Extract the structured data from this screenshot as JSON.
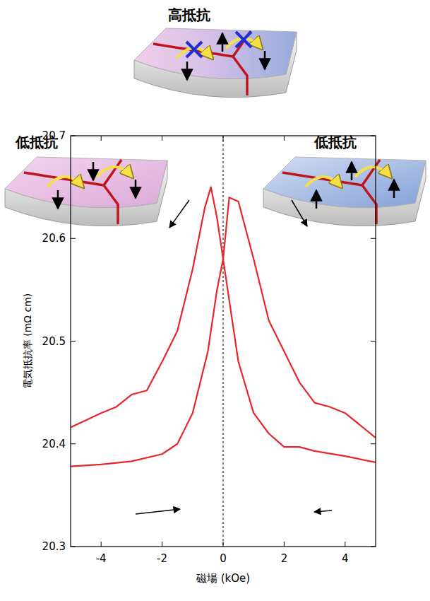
{
  "diagram": {
    "panels": [
      {
        "label": "高抵抗"
      },
      {
        "label": "低抵抗"
      },
      {
        "label": "低抵抗"
      }
    ]
  },
  "chart_data": {
    "type": "line",
    "x_label": "磁場 (kOe)",
    "y_label": "電気抵抗率 (mΩ cm)",
    "xlim": [
      -5,
      5
    ],
    "xticks": [
      -4,
      -2,
      0,
      2,
      4
    ],
    "ylim": [
      20.3,
      20.7
    ],
    "yticks": [
      20.3,
      20.4,
      20.5,
      20.6,
      20.7
    ],
    "grid": false,
    "reference_lines": [
      {
        "x": 0,
        "line_style": "dashed"
      }
    ],
    "series": [
      {
        "color": "#e8262a",
        "x": [
          5,
          4,
          3,
          2.5,
          2,
          1.5,
          1,
          0.5,
          0.2,
          0,
          -0.2,
          -0.4,
          -0.6,
          -1,
          -1.5,
          -2,
          -2.5,
          -3,
          -3.5,
          -4,
          -5
        ],
        "values": [
          20.382,
          20.388,
          20.393,
          20.397,
          20.397,
          20.41,
          20.43,
          20.48,
          20.54,
          20.58,
          20.62,
          20.65,
          20.63,
          20.57,
          20.51,
          20.48,
          20.452,
          20.448,
          20.436,
          20.43,
          20.416
        ]
      },
      {
        "color": "#e8262a",
        "x": [
          -5,
          -4,
          -3,
          -2,
          -1.5,
          -1,
          -0.5,
          -0.2,
          0,
          0.2,
          0.5,
          1,
          1.5,
          2,
          2.5,
          3,
          3.5,
          4,
          5
        ],
        "values": [
          20.378,
          20.38,
          20.383,
          20.39,
          20.4,
          20.43,
          20.49,
          20.55,
          20.58,
          20.64,
          20.636,
          20.58,
          20.52,
          20.49,
          20.46,
          20.44,
          20.436,
          20.43,
          20.406
        ]
      }
    ]
  }
}
